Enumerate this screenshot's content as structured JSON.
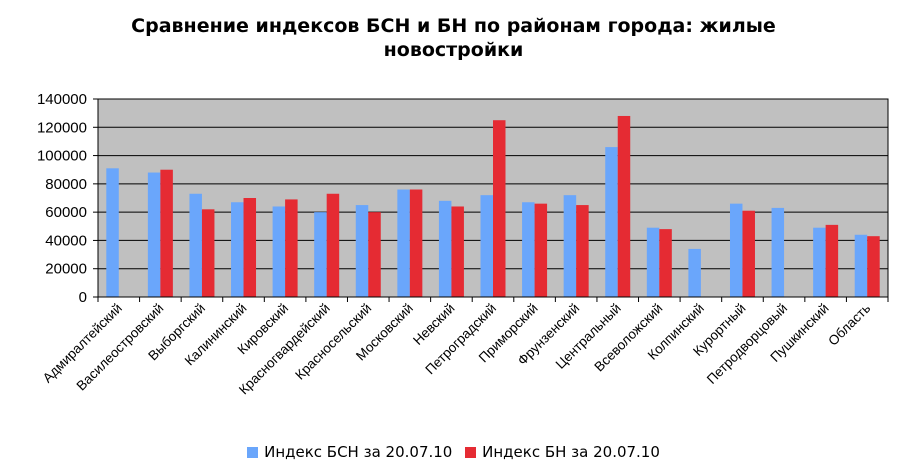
{
  "chart_data": {
    "type": "bar",
    "title_lines": [
      "Сравнение индексов БСН и БН по районам города: жилые",
      "новостройки"
    ],
    "categories": [
      "Адмиралтейский",
      "Василеостровский",
      "Выборгский",
      "Калининский",
      "Кировский",
      "Красногвардейский",
      "Красносельский",
      "Московский",
      "Невский",
      "Петроградский",
      "Приморский",
      "Фрунзенский",
      "Центральный",
      "Всеволожский",
      "Колпинский",
      "Курортный",
      "Петродворцовый",
      "Пушкинский",
      "Область"
    ],
    "series": [
      {
        "name": "Индекс БСН за 20.07.10",
        "color": "#6aa6fb",
        "values": [
          91000,
          88000,
          73000,
          67000,
          64000,
          60000,
          65000,
          76000,
          68000,
          72000,
          67000,
          72000,
          106000,
          49000,
          34000,
          66000,
          63000,
          49000,
          44000
        ]
      },
      {
        "name": "Индекс БН за 20.07.10",
        "color": "#e52b33",
        "values": [
          null,
          90000,
          62000,
          70000,
          69000,
          73000,
          60000,
          76000,
          64000,
          125000,
          66000,
          65000,
          128000,
          48000,
          null,
          61000,
          null,
          51000,
          43000
        ]
      }
    ],
    "ylim": [
      0,
      140000
    ],
    "yticks": [
      "0",
      "20000",
      "40000",
      "60000",
      "80000",
      "100000",
      "120000",
      "140000"
    ],
    "plot_background": "#c0c0c0",
    "grid": true,
    "legend_position": "bottom"
  }
}
